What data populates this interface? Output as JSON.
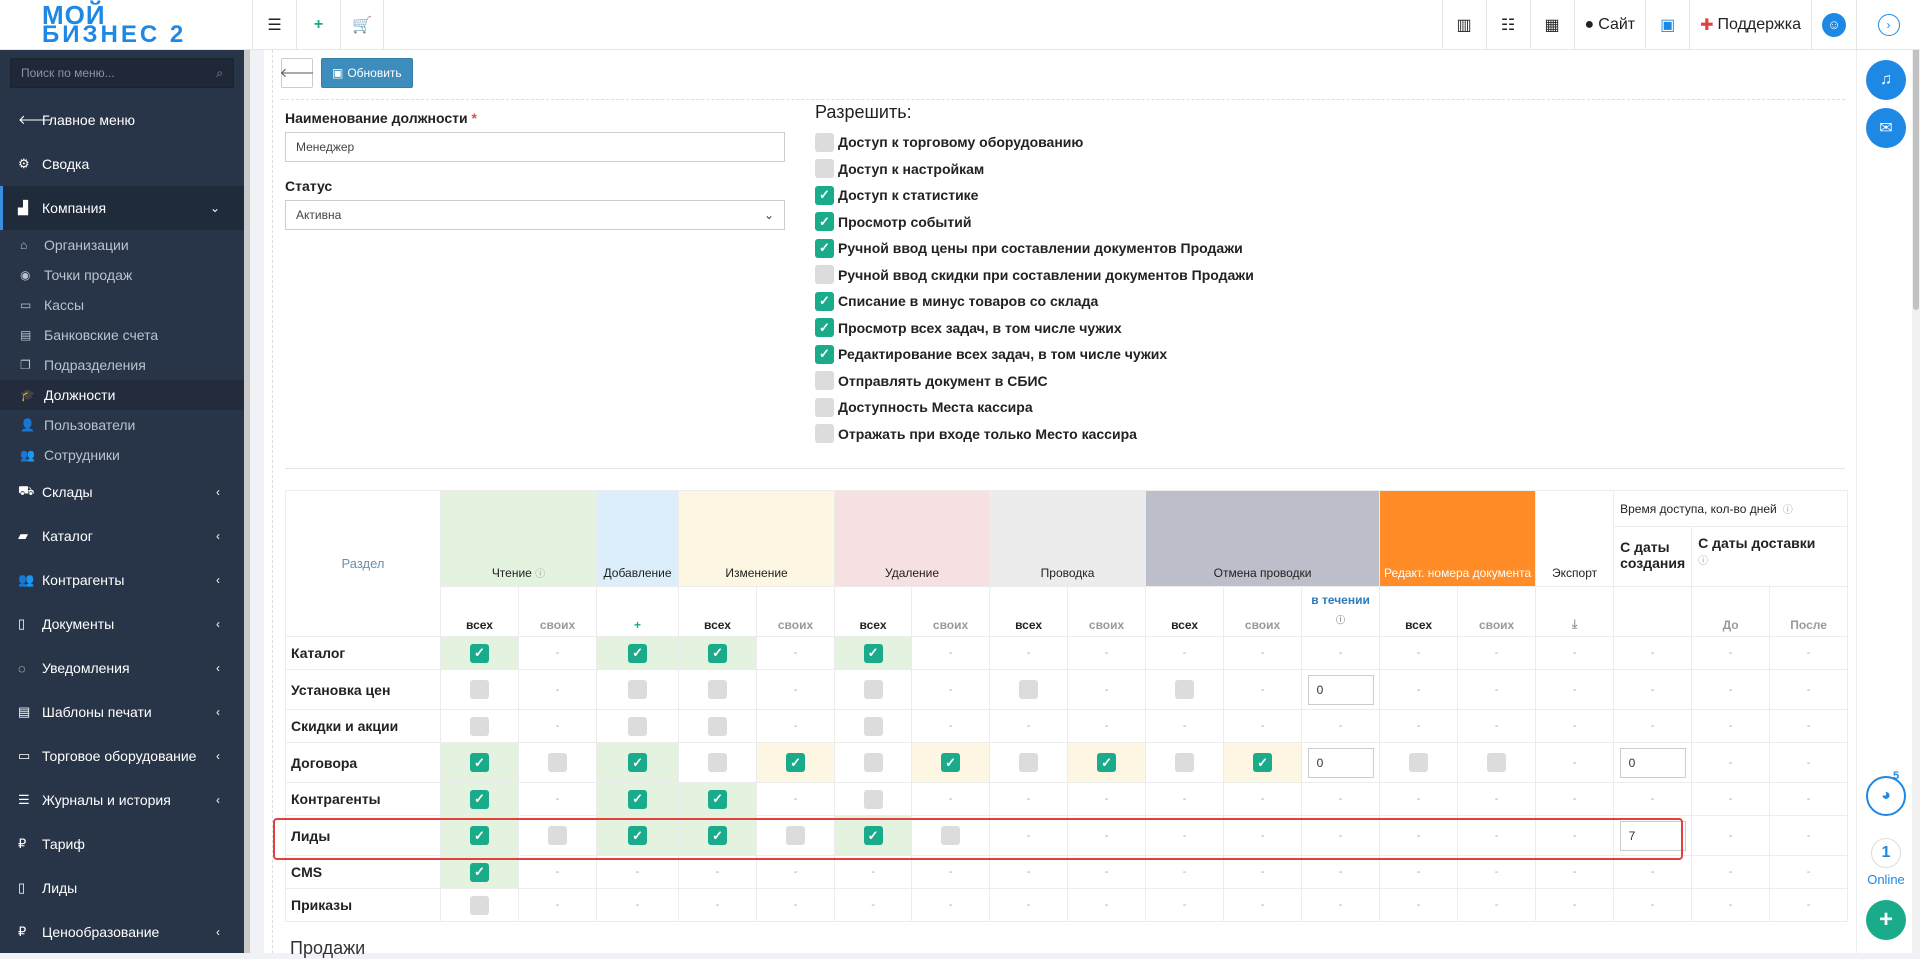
{
  "brand": {
    "line1": "МОЙ",
    "line2": "БИЗНЕС 2"
  },
  "topbar": {
    "site_label": "Сайт",
    "support_label": "Поддержка"
  },
  "sidebar": {
    "search_placeholder": "Поиск по меню...",
    "items": [
      {
        "label": "Главное меню",
        "icon": "arrow-left-icon"
      },
      {
        "label": "Сводка",
        "icon": "gear-icon"
      },
      {
        "label": "Компания",
        "icon": "chart-icon"
      },
      {
        "label": "Склады",
        "icon": "truck-icon"
      },
      {
        "label": "Каталог",
        "icon": "folder-icon"
      },
      {
        "label": "Контрагенты",
        "icon": "users-icon"
      },
      {
        "label": "Документы",
        "icon": "file-icon"
      },
      {
        "label": "Уведомления",
        "icon": "comments-icon"
      },
      {
        "label": "Шаблоны печати",
        "icon": "file-text-icon"
      },
      {
        "label": "Торговое оборудование",
        "icon": "hdd-icon"
      },
      {
        "label": "Журналы и история",
        "icon": "list-icon"
      },
      {
        "label": "Тариф",
        "icon": "ruble-icon"
      },
      {
        "label": "Лиды",
        "icon": "file-icon"
      },
      {
        "label": "Ценообразование",
        "icon": "ruble-icon"
      }
    ],
    "subitems": [
      {
        "label": "Организации"
      },
      {
        "label": "Точки продаж"
      },
      {
        "label": "Кассы"
      },
      {
        "label": "Банковские счета"
      },
      {
        "label": "Подразделения"
      },
      {
        "label": "Должности"
      },
      {
        "label": "Пользователи"
      },
      {
        "label": "Сотрудники"
      }
    ]
  },
  "toolbar": {
    "refresh_label": "Обновить"
  },
  "form": {
    "position_label": "Наименование должности",
    "required_mark": "*",
    "position_value": "Менеджер",
    "status_label": "Статус",
    "status_value": "Активна"
  },
  "permissions": {
    "title": "Разрешить:",
    "items": [
      {
        "label": "Доступ к торговому оборудованию",
        "checked": false
      },
      {
        "label": "Доступ к настройкам",
        "checked": false
      },
      {
        "label": "Доступ к статистике",
        "checked": true
      },
      {
        "label": "Просмотр событий",
        "checked": true
      },
      {
        "label": "Ручной ввод цены при составлении документов Продажи",
        "checked": true
      },
      {
        "label": "Ручной ввод скидки при составлении документов Продажи",
        "checked": false
      },
      {
        "label": "Списание в минус товаров со склада",
        "checked": true
      },
      {
        "label": "Просмотр всех задач, в том числе чужих",
        "checked": true
      },
      {
        "label": "Редактирование всех задач, в том числе чужих",
        "checked": true
      },
      {
        "label": "Отправлять документ в СБИС",
        "checked": false
      },
      {
        "label": "Доступность Места кассира",
        "checked": false
      },
      {
        "label": "Отражать при входе только Место кассира",
        "checked": false
      }
    ]
  },
  "table": {
    "section_header": "Раздел",
    "headers": {
      "read": "Чтение",
      "add": "Добавление",
      "edit": "Изменение",
      "delete": "Удаление",
      "post": "Проводка",
      "unpost": "Отмена проводки",
      "doc_number": "Редакт. номера документа",
      "export": "Экспорт",
      "access_time": "Время доступа, кол-во дней",
      "from_creation": "С даты создания",
      "from_delivery": "С даты доставки"
    },
    "sub": {
      "all": "всех",
      "own": "своих",
      "during": "в течении",
      "before": "До",
      "after": "После",
      "dash": "-"
    },
    "rows": [
      {
        "name": "Каталог"
      },
      {
        "name": "Установка цен",
        "input1": "0"
      },
      {
        "name": "Скидки и акции"
      },
      {
        "name": "Договора",
        "input1": "0",
        "input2": "0"
      },
      {
        "name": "Контрагенты"
      },
      {
        "name": "Лиды",
        "input2": "7"
      },
      {
        "name": "CMS"
      },
      {
        "name": "Приказы"
      }
    ]
  },
  "next_section": "Продажи",
  "rail": {
    "online_count": "1",
    "online_label": "Online",
    "badge": "5"
  },
  "colors": {
    "accent": "#1e88e5",
    "check": "#1aab8a",
    "sidebar": "#283447",
    "orange": "#ff8c26"
  }
}
